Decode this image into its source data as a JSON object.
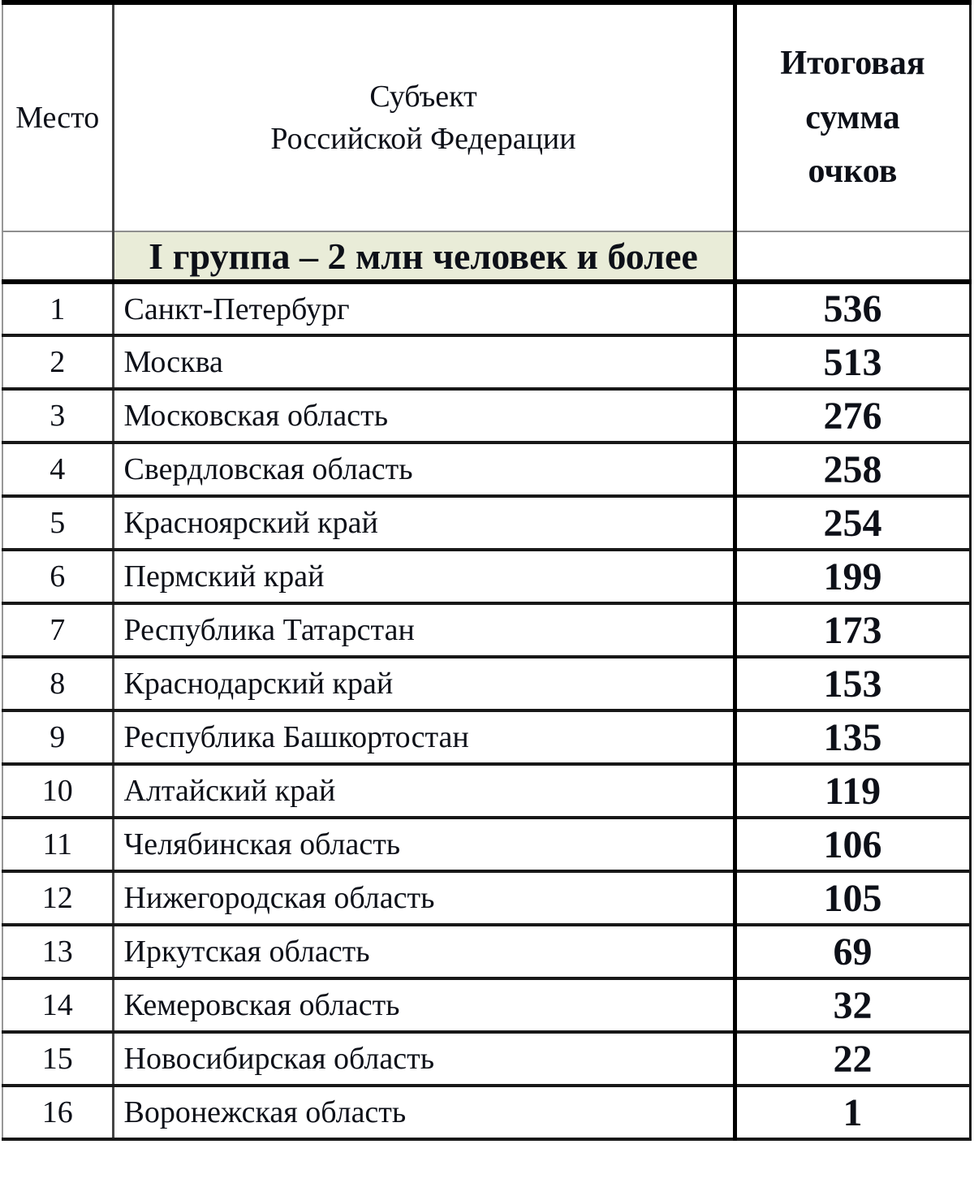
{
  "header": {
    "place": "Место",
    "subject_line1": "Субъект",
    "subject_line2": "Российской Федерации",
    "score_line1": "Итоговая",
    "score_line2": "сумма",
    "score_line3": "очков"
  },
  "group": {
    "title": "I группа – 2 млн человек и более"
  },
  "rows": [
    {
      "place": "1",
      "subject": "Санкт-Петербург",
      "score": "536"
    },
    {
      "place": "2",
      "subject": "Москва",
      "score": "513"
    },
    {
      "place": "3",
      "subject": "Московская область",
      "score": "276"
    },
    {
      "place": "4",
      "subject": "Свердловская область",
      "score": "258"
    },
    {
      "place": "5",
      "subject": "Красноярский край",
      "score": "254"
    },
    {
      "place": "6",
      "subject": "Пермский край",
      "score": "199"
    },
    {
      "place": "7",
      "subject": "Республика Татарстан",
      "score": "173"
    },
    {
      "place": "8",
      "subject": "Краснодарский край",
      "score": "153"
    },
    {
      "place": "9",
      "subject": "Республика Башкортостан",
      "score": "135"
    },
    {
      "place": "10",
      "subject": "Алтайский край",
      "score": "119"
    },
    {
      "place": "11",
      "subject": "Челябинская область",
      "score": "106"
    },
    {
      "place": "12",
      "subject": "Нижегородская область",
      "score": "105"
    },
    {
      "place": "13",
      "subject": "Иркутская область",
      "score": "69"
    },
    {
      "place": "14",
      "subject": "Кемеровская область",
      "score": "32"
    },
    {
      "place": "15",
      "subject": "Новосибирская область",
      "score": "22"
    },
    {
      "place": "16",
      "subject": "Воронежская область",
      "score": "1"
    }
  ],
  "colors": {
    "group_band_bg": "#e9ecd8",
    "text": "#0d1018",
    "border_black": "#000000",
    "border_gray": "#8f8f8f"
  }
}
